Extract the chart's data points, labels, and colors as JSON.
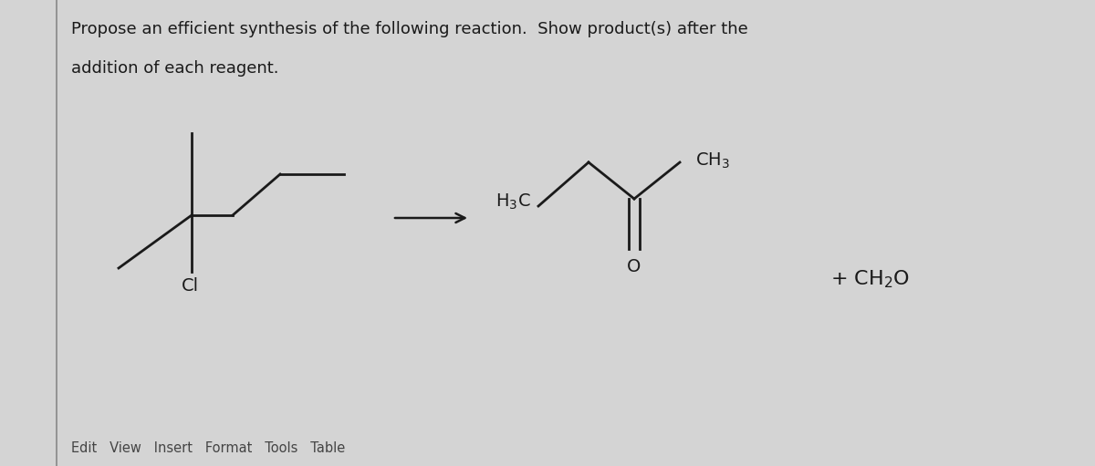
{
  "title_line1": "Propose an efficient synthesis of the following reaction.  Show product(s) after the",
  "title_line2": "addition of each reagent.",
  "bg_color": "#c8c8c8",
  "content_bg": "#d4d4d4",
  "line_color": "#1a1a1a",
  "text_color": "#1a1a1a",
  "footer_text": "Edit   View   Insert   Format   Tools   Table",
  "reactant_cl_label": "Cl",
  "product_h3c_label": "H$_3$C",
  "product_ch3_label": "CH$_3$",
  "product_o_label": "O",
  "byproduct_label": "+ CH$_2$O"
}
